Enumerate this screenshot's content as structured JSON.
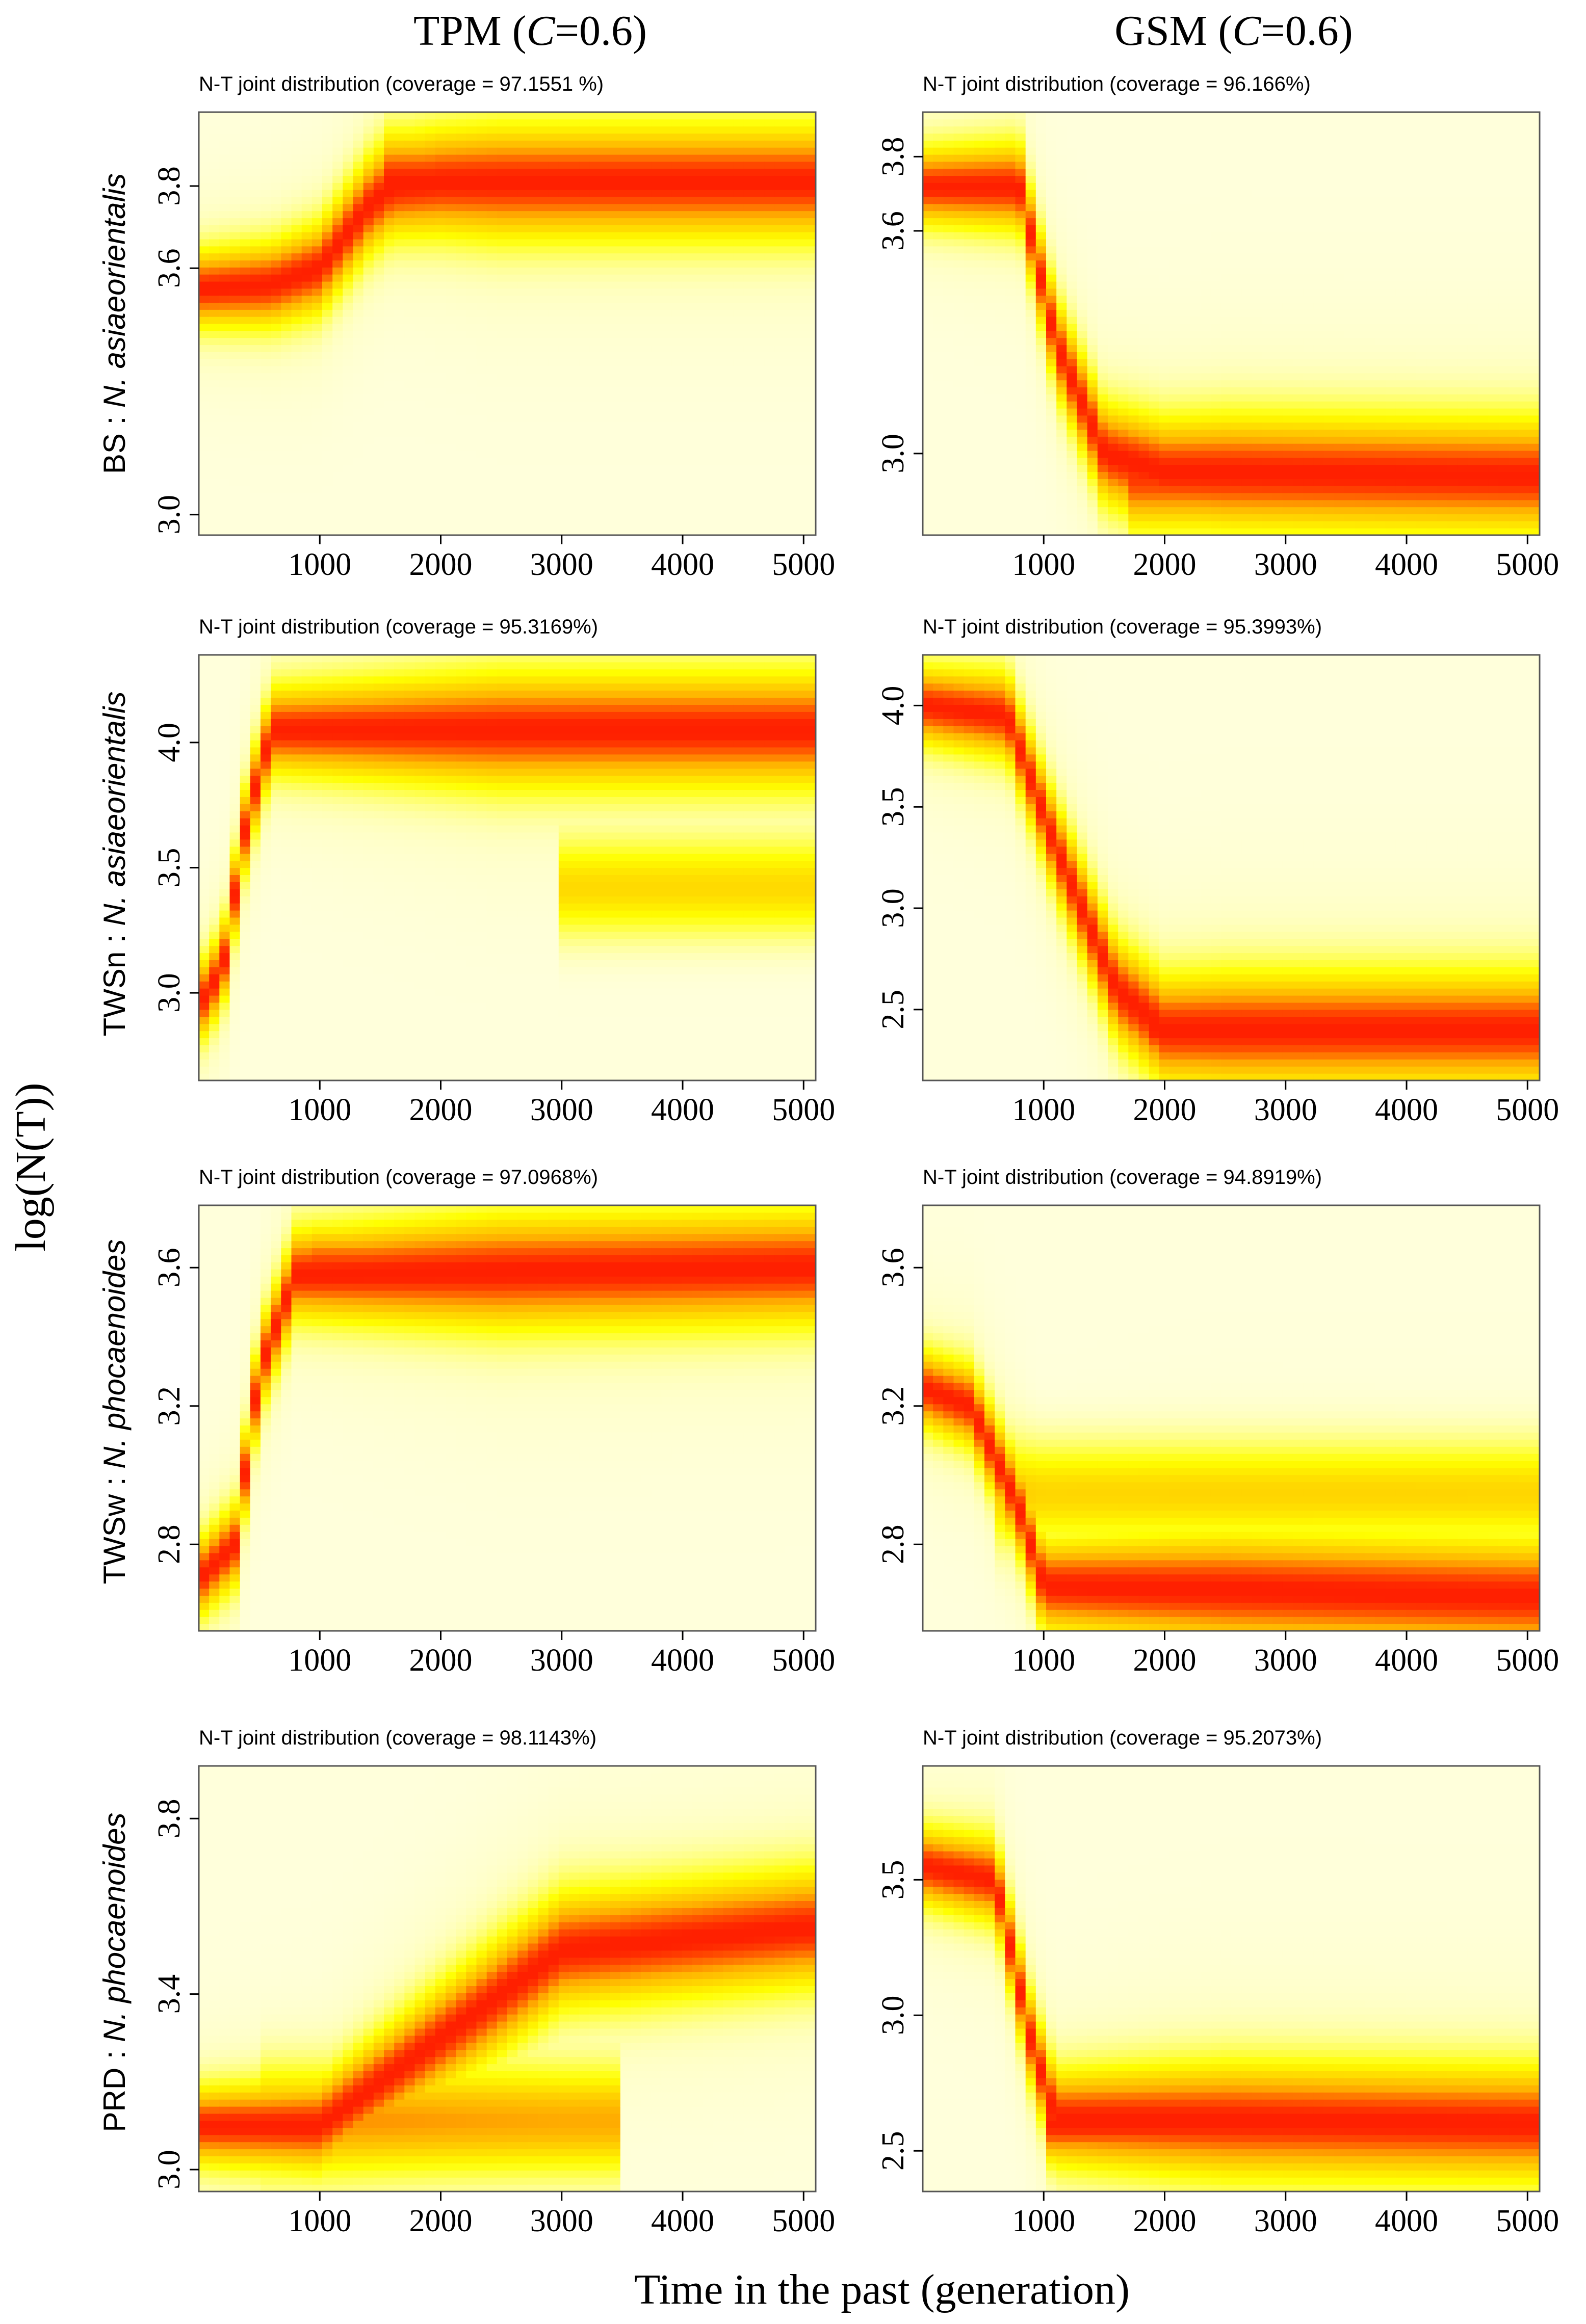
{
  "figure": {
    "columns": [
      "TPM (C=0.6)",
      "GSM (C=0.6)"
    ],
    "column_titles": [
      {
        "pre": "TPM (",
        "italic": "C",
        "post": "=0.6)"
      },
      {
        "pre": "GSM (",
        "italic": "C",
        "post": "=0.6)"
      }
    ],
    "ylabel": "log(N(T))",
    "xlabel": "Time in the past (generation)",
    "row_labels": [
      {
        "pop": "BS",
        "species": "N. asiaeorientalis"
      },
      {
        "pop": "TWSn",
        "species": "N. asiaeorientalis"
      },
      {
        "pop": "TWSw",
        "species": "N. phocaenoides"
      },
      {
        "pop": "PRD",
        "species": "N. phocaenoides"
      }
    ],
    "colors": {
      "low": "#ffffdb",
      "mid": "#ffff00",
      "orange": "#ffb000",
      "high": "#ff2000",
      "text": "#000000",
      "frame": "#555555"
    }
  },
  "chart_data": [
    {
      "type": "heatmap",
      "model": "TPM",
      "population": "BS",
      "species": "N. asiaeorientalis",
      "title": "N-T joint distribution (coverage = 97.1551 %)",
      "xlim": [
        0,
        5100
      ],
      "ylim": [
        2.95,
        3.98
      ],
      "xticks": [
        1000,
        2000,
        3000,
        4000,
        5000
      ],
      "xtick_labels": [
        "1000",
        "2000",
        "3000",
        "4000",
        "5000"
      ],
      "yticks": [
        3.0,
        3.6,
        3.8
      ],
      "ytick_labels": [
        "3.0",
        "3.6",
        "3.8"
      ],
      "trajectory": [
        [
          0,
          3.55
        ],
        [
          600,
          3.56
        ],
        [
          1000,
          3.6
        ],
        [
          1400,
          3.75
        ],
        [
          1600,
          3.8
        ],
        [
          2000,
          3.81
        ],
        [
          5000,
          3.81
        ]
      ],
      "ridges": [
        {
          "t0": 1500,
          "t1": 5100,
          "y": 3.81,
          "w": 0.05,
          "h": 0.95
        }
      ]
    },
    {
      "type": "heatmap",
      "model": "GSM",
      "population": "BS",
      "species": "N. asiaeorientalis",
      "title": "N-T joint distribution (coverage = 96.166%)",
      "xlim": [
        0,
        5100
      ],
      "ylim": [
        2.78,
        3.92
      ],
      "xticks": [
        1000,
        2000,
        3000,
        4000,
        5000
      ],
      "xtick_labels": [
        "1000",
        "2000",
        "3000",
        "4000",
        "5000"
      ],
      "yticks": [
        3.0,
        3.6,
        3.8
      ],
      "ytick_labels": [
        "3.0",
        "3.6",
        "3.8"
      ],
      "trajectory": [
        [
          0,
          3.72
        ],
        [
          800,
          3.72
        ],
        [
          1100,
          3.3
        ],
        [
          1500,
          3.0
        ],
        [
          2000,
          2.95
        ],
        [
          5000,
          2.94
        ]
      ],
      "ridges": [
        {
          "t0": 1700,
          "t1": 5100,
          "y": 2.94,
          "w": 0.06,
          "h": 0.9
        }
      ]
    },
    {
      "type": "heatmap",
      "model": "TPM",
      "population": "TWSn",
      "species": "N. asiaeorientalis",
      "title": "N-T joint distribution (coverage = 95.3169%)",
      "xlim": [
        0,
        5100
      ],
      "ylim": [
        2.65,
        4.35
      ],
      "xticks": [
        1000,
        2000,
        3000,
        4000,
        5000
      ],
      "xtick_labels": [
        "1000",
        "2000",
        "3000",
        "4000",
        "5000"
      ],
      "yticks": [
        3.0,
        3.5,
        4.0
      ],
      "ytick_labels": [
        "3.0",
        "3.5",
        "4.0"
      ],
      "trajectory": [
        [
          0,
          2.95
        ],
        [
          200,
          3.1
        ],
        [
          400,
          3.7
        ],
        [
          600,
          4.05
        ],
        [
          5000,
          4.05
        ]
      ],
      "ridges": [
        {
          "t0": 3000,
          "t1": 5100,
          "y": 3.42,
          "w": 0.08,
          "h": 0.5
        }
      ]
    },
    {
      "type": "heatmap",
      "model": "GSM",
      "population": "TWSn",
      "species": "N. asiaeorientalis",
      "title": "N-T joint distribution (coverage = 95.3993%)",
      "xlim": [
        0,
        5100
      ],
      "ylim": [
        2.15,
        4.25
      ],
      "xticks": [
        1000,
        2000,
        3000,
        4000,
        5000
      ],
      "xtick_labels": [
        "1000",
        "2000",
        "3000",
        "4000",
        "5000"
      ],
      "yticks": [
        2.5,
        3.0,
        3.5,
        4.0
      ],
      "ytick_labels": [
        "2.5",
        "3.0",
        "3.5",
        "4.0"
      ],
      "trajectory": [
        [
          0,
          4.0
        ],
        [
          700,
          3.95
        ],
        [
          1100,
          3.3
        ],
        [
          1600,
          2.6
        ],
        [
          2000,
          2.4
        ],
        [
          5000,
          2.4
        ]
      ],
      "ridges": [
        {
          "t0": 1900,
          "t1": 5100,
          "y": 2.4,
          "w": 0.07,
          "h": 0.95
        }
      ]
    },
    {
      "type": "heatmap",
      "model": "TPM",
      "population": "TWSw",
      "species": "N. phocaenoides",
      "title": "N-T joint distribution (coverage = 97.0968%)",
      "xlim": [
        0,
        5100
      ],
      "ylim": [
        2.55,
        3.78
      ],
      "xticks": [
        1000,
        2000,
        3000,
        4000,
        5000
      ],
      "xtick_labels": [
        "1000",
        "2000",
        "3000",
        "4000",
        "5000"
      ],
      "yticks": [
        2.8,
        3.2,
        3.6
      ],
      "ytick_labels": [
        "2.8",
        "3.2",
        "3.6"
      ],
      "trajectory": [
        [
          0,
          2.7
        ],
        [
          300,
          2.8
        ],
        [
          500,
          3.3
        ],
        [
          800,
          3.58
        ],
        [
          5000,
          3.6
        ]
      ],
      "ridges": [
        {
          "t0": 900,
          "t1": 5100,
          "y": 3.6,
          "w": 0.05,
          "h": 0.9
        }
      ]
    },
    {
      "type": "heatmap",
      "model": "GSM",
      "population": "TWSw",
      "species": "N. phocaenoides",
      "title": "N-T joint distribution (coverage = 94.8919%)",
      "xlim": [
        0,
        5100
      ],
      "ylim": [
        2.55,
        3.78
      ],
      "xticks": [
        1000,
        2000,
        3000,
        4000,
        5000
      ],
      "xtick_labels": [
        "1000",
        "2000",
        "3000",
        "4000",
        "5000"
      ],
      "yticks": [
        2.8,
        3.2,
        3.6
      ],
      "ytick_labels": [
        "2.8",
        "3.2",
        "3.6"
      ],
      "trajectory": [
        [
          0,
          3.25
        ],
        [
          400,
          3.2
        ],
        [
          800,
          2.9
        ],
        [
          1000,
          2.68
        ],
        [
          5000,
          2.65
        ]
      ],
      "ridges": [
        {
          "t0": 600,
          "t1": 5100,
          "y": 2.95,
          "w": 0.06,
          "h": 0.5
        }
      ]
    },
    {
      "type": "heatmap",
      "model": "TPM",
      "population": "PRD",
      "species": "N. phocaenoides",
      "title": "N-T joint distribution (coverage = 98.1143%)",
      "xlim": [
        0,
        5100
      ],
      "ylim": [
        2.95,
        3.92
      ],
      "xticks": [
        1000,
        2000,
        3000,
        4000,
        5000
      ],
      "xtick_labels": [
        "1000",
        "2000",
        "3000",
        "4000",
        "5000"
      ],
      "yticks": [
        3.0,
        3.4,
        3.8
      ],
      "ytick_labels": [
        "3.0",
        "3.4",
        "3.8"
      ],
      "trajectory": [
        [
          0,
          3.1
        ],
        [
          1000,
          3.1
        ],
        [
          2000,
          3.3
        ],
        [
          3000,
          3.5
        ],
        [
          5000,
          3.55
        ]
      ],
      "ridges": [
        {
          "t0": 500,
          "t1": 3500,
          "y": 3.11,
          "w": 0.05,
          "h": 0.7
        }
      ]
    },
    {
      "type": "heatmap",
      "model": "GSM",
      "population": "PRD",
      "species": "N. phocaenoides",
      "title": "N-T joint distribution (coverage = 95.2073%)",
      "xlim": [
        0,
        5100
      ],
      "ylim": [
        2.35,
        3.92
      ],
      "xticks": [
        1000,
        2000,
        3000,
        4000,
        5000
      ],
      "xtick_labels": [
        "1000",
        "2000",
        "3000",
        "4000",
        "5000"
      ],
      "yticks": [
        2.5,
        3.0,
        3.5
      ],
      "ytick_labels": [
        "2.5",
        "3.0",
        "3.5"
      ],
      "trajectory": [
        [
          0,
          3.55
        ],
        [
          600,
          3.5
        ],
        [
          900,
          2.9
        ],
        [
          1100,
          2.62
        ],
        [
          5000,
          2.6
        ]
      ],
      "ridges": [
        {
          "t0": 1000,
          "t1": 5100,
          "y": 2.6,
          "w": 0.06,
          "h": 0.95
        }
      ]
    }
  ]
}
